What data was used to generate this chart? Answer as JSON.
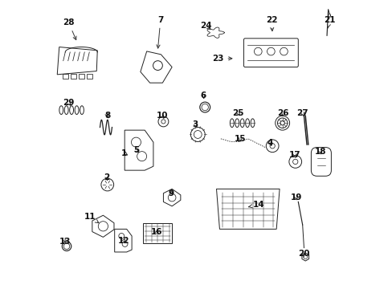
{
  "background_color": "#ffffff",
  "dark": "#222222",
  "lw": 0.7,
  "label_data": [
    [
      28,
      0.055,
      0.925,
      0.085,
      0.855
    ],
    [
      7,
      0.375,
      0.935,
      0.365,
      0.825
    ],
    [
      22,
      0.762,
      0.935,
      0.765,
      0.885
    ],
    [
      21,
      0.965,
      0.935,
      0.958,
      0.905
    ],
    [
      24,
      0.533,
      0.915,
      0.558,
      0.895
    ],
    [
      23,
      0.575,
      0.8,
      0.635,
      0.8
    ],
    [
      29,
      0.055,
      0.645,
      0.068,
      0.628
    ],
    [
      8,
      0.19,
      0.6,
      0.195,
      0.585
    ],
    [
      6,
      0.524,
      0.67,
      0.528,
      0.65
    ],
    [
      3,
      0.497,
      0.57,
      0.503,
      0.558
    ],
    [
      10,
      0.38,
      0.6,
      0.393,
      0.583
    ],
    [
      25,
      0.646,
      0.61,
      0.655,
      0.592
    ],
    [
      26,
      0.803,
      0.61,
      0.8,
      0.596
    ],
    [
      27,
      0.87,
      0.61,
      0.875,
      0.597
    ],
    [
      15,
      0.653,
      0.52,
      0.65,
      0.508
    ],
    [
      4,
      0.758,
      0.505,
      0.762,
      0.493
    ],
    [
      17,
      0.843,
      0.465,
      0.845,
      0.452
    ],
    [
      18,
      0.932,
      0.475,
      0.935,
      0.465
    ],
    [
      1,
      0.249,
      0.47,
      0.262,
      0.462
    ],
    [
      5,
      0.29,
      0.48,
      0.3,
      0.472
    ],
    [
      9,
      0.412,
      0.33,
      0.415,
      0.342
    ],
    [
      2,
      0.188,
      0.385,
      0.19,
      0.372
    ],
    [
      14,
      0.718,
      0.29,
      0.68,
      0.282
    ],
    [
      19,
      0.848,
      0.315,
      0.854,
      0.298
    ],
    [
      20,
      0.875,
      0.118,
      0.878,
      0.122
    ],
    [
      11,
      0.128,
      0.248,
      0.162,
      0.225
    ],
    [
      12,
      0.247,
      0.165,
      0.256,
      0.18
    ],
    [
      13,
      0.042,
      0.162,
      0.044,
      0.158
    ],
    [
      16,
      0.363,
      0.195,
      0.366,
      0.205
    ]
  ]
}
